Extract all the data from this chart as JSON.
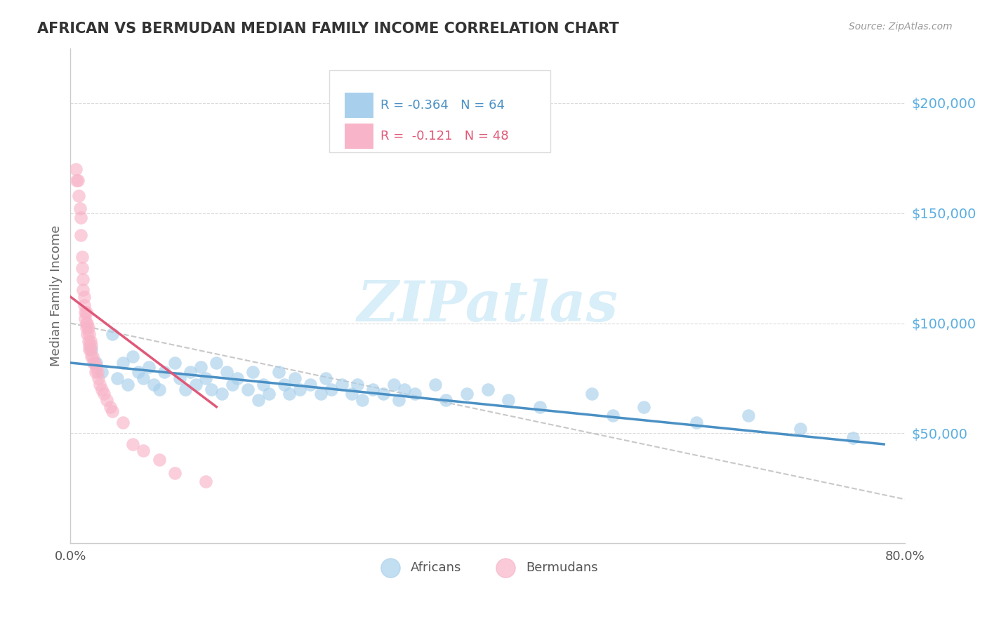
{
  "title": "AFRICAN VS BERMUDAN MEDIAN FAMILY INCOME CORRELATION CHART",
  "source": "Source: ZipAtlas.com",
  "ylabel": "Median Family Income",
  "xmin": 0.0,
  "xmax": 0.8,
  "ymin": 0,
  "ymax": 225000,
  "R_african": -0.364,
  "N_african": 64,
  "R_bermudan": -0.121,
  "N_bermudan": 48,
  "african_color": "#A8D0EC",
  "bermudan_color": "#F8B4C8",
  "african_line_color": "#4A90C4",
  "bermudan_line_color": "#E05878",
  "background_color": "#FFFFFF",
  "grid_color": "#CCCCCC",
  "title_color": "#333333",
  "axis_label_color": "#666666",
  "ytick_color": "#5AAEE0",
  "watermark": "ZIPatlas",
  "watermark_color": "#D8EEF8",
  "africans_x": [
    0.02,
    0.025,
    0.03,
    0.04,
    0.045,
    0.05,
    0.055,
    0.06,
    0.065,
    0.07,
    0.075,
    0.08,
    0.085,
    0.09,
    0.1,
    0.105,
    0.11,
    0.115,
    0.12,
    0.125,
    0.13,
    0.135,
    0.14,
    0.145,
    0.15,
    0.155,
    0.16,
    0.17,
    0.175,
    0.18,
    0.185,
    0.19,
    0.2,
    0.205,
    0.21,
    0.215,
    0.22,
    0.23,
    0.24,
    0.245,
    0.25,
    0.26,
    0.27,
    0.275,
    0.28,
    0.29,
    0.3,
    0.31,
    0.315,
    0.32,
    0.33,
    0.35,
    0.36,
    0.38,
    0.4,
    0.42,
    0.45,
    0.5,
    0.52,
    0.55,
    0.6,
    0.65,
    0.7,
    0.75
  ],
  "africans_y": [
    88000,
    82000,
    78000,
    95000,
    75000,
    82000,
    72000,
    85000,
    78000,
    75000,
    80000,
    72000,
    70000,
    78000,
    82000,
    75000,
    70000,
    78000,
    72000,
    80000,
    75000,
    70000,
    82000,
    68000,
    78000,
    72000,
    75000,
    70000,
    78000,
    65000,
    72000,
    68000,
    78000,
    72000,
    68000,
    75000,
    70000,
    72000,
    68000,
    75000,
    70000,
    72000,
    68000,
    72000,
    65000,
    70000,
    68000,
    72000,
    65000,
    70000,
    68000,
    72000,
    65000,
    68000,
    70000,
    65000,
    62000,
    68000,
    58000,
    62000,
    55000,
    58000,
    52000,
    48000
  ],
  "bermudans_x": [
    0.005,
    0.006,
    0.007,
    0.008,
    0.009,
    0.01,
    0.01,
    0.011,
    0.011,
    0.012,
    0.012,
    0.013,
    0.013,
    0.014,
    0.014,
    0.015,
    0.015,
    0.015,
    0.016,
    0.016,
    0.017,
    0.017,
    0.018,
    0.018,
    0.018,
    0.019,
    0.019,
    0.02,
    0.02,
    0.021,
    0.022,
    0.023,
    0.024,
    0.025,
    0.026,
    0.027,
    0.028,
    0.03,
    0.032,
    0.035,
    0.038,
    0.04,
    0.05,
    0.06,
    0.07,
    0.085,
    0.1,
    0.13
  ],
  "bermudans_y": [
    170000,
    165000,
    165000,
    158000,
    152000,
    148000,
    140000,
    130000,
    125000,
    120000,
    115000,
    112000,
    108000,
    105000,
    102000,
    105000,
    100000,
    98000,
    100000,
    95000,
    98000,
    92000,
    95000,
    90000,
    88000,
    92000,
    88000,
    90000,
    85000,
    85000,
    82000,
    82000,
    78000,
    80000,
    78000,
    75000,
    72000,
    70000,
    68000,
    65000,
    62000,
    60000,
    55000,
    45000,
    42000,
    38000,
    32000,
    28000
  ],
  "african_trendline_x": [
    0.0,
    0.78
  ],
  "african_trendline_y": [
    82000,
    45000
  ],
  "bermudan_trendline_x": [
    0.0,
    0.14
  ],
  "bermudan_trendline_y": [
    112000,
    62000
  ],
  "dash_trendline_x": [
    0.0,
    0.8
  ],
  "dash_trendline_y": [
    100000,
    20000
  ]
}
